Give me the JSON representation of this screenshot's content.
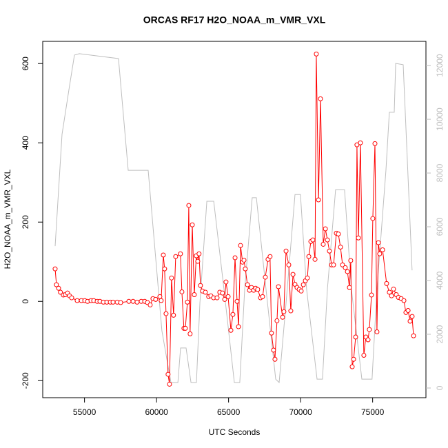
{
  "chart_data": {
    "type": "line",
    "title": "ORCAS RF17 H2O_NOAA_m_VMR_VXL",
    "x_label": "UTC Seconds",
    "y_label": "H2O_NOAA_m_VMR_VXL",
    "xlim": [
      52100,
      78700
    ],
    "xticks": [
      55000,
      60000,
      65000,
      70000,
      75000
    ],
    "ylim": [
      -243,
      656
    ],
    "yticks": [
      -200,
      0,
      200,
      400,
      600
    ],
    "y2lim": [
      -360,
      12900
    ],
    "y2ticks": [
      0,
      2000,
      4000,
      6000,
      8000,
      10000,
      12000
    ],
    "y2_color": "#bebebe",
    "series": [
      {
        "color": "#bebebe",
        "axis": "y2",
        "markers": false,
        "x": [
          52960,
          53440,
          53920,
          54300,
          54640,
          57360,
          58030,
          59420,
          60370,
          61000,
          61480,
          61670,
          62050,
          62390,
          62770,
          63010,
          63490,
          63970,
          64680,
          65400,
          65780,
          66120,
          66640,
          66930,
          67600,
          68270,
          68510,
          68990,
          69610,
          69990,
          70420,
          71140,
          71520,
          71860,
          72430,
          73050,
          73530,
          74250,
          74960,
          75300,
          75920,
          76160,
          76500,
          76600,
          77120,
          77740
        ],
        "values": [
          5280,
          9440,
          11100,
          12390,
          12440,
          12260,
          8100,
          8100,
          2130,
          205,
          205,
          1490,
          1490,
          205,
          205,
          3150,
          6950,
          6950,
          3670,
          205,
          205,
          3670,
          7080,
          7080,
          3670,
          330,
          205,
          3150,
          7200,
          7200,
          3670,
          330,
          330,
          3670,
          7380,
          7380,
          3670,
          330,
          330,
          3670,
          8080,
          10260,
          10260,
          12080,
          12030,
          4380
        ]
      },
      {
        "color": "#ff0000",
        "markers": true,
        "x": [
          52960,
          53050,
          53200,
          53330,
          53530,
          53670,
          53820,
          53960,
          54110,
          54490,
          54780,
          55020,
          55210,
          55450,
          55640,
          55880,
          56070,
          56310,
          56550,
          56790,
          56980,
          57270,
          57510,
          58080,
          58370,
          58650,
          58940,
          59180,
          59370,
          59560,
          59750,
          59940,
          60230,
          60320,
          60470,
          60560,
          60660,
          60800,
          60900,
          61040,
          61180,
          61330,
          61660,
          61760,
          61900,
          62000,
          62140,
          62240,
          62330,
          62480,
          62620,
          62760,
          62860,
          62950,
          63050,
          63190,
          63390,
          63620,
          63770,
          63960,
          64200,
          64390,
          64580,
          64730,
          64820,
          64970,
          65160,
          65300,
          65450,
          65590,
          65690,
          65830,
          65970,
          66070,
          66160,
          66310,
          66450,
          66590,
          66740,
          66880,
          67020,
          67220,
          67360,
          67550,
          67740,
          67880,
          67980,
          68120,
          68220,
          68360,
          68460,
          68750,
          68840,
          68990,
          69180,
          69320,
          69470,
          69610,
          69750,
          69900,
          70040,
          70190,
          70330,
          70470,
          70570,
          70710,
          70850,
          71000,
          71090,
          71240,
          71380,
          71570,
          71720,
          71860,
          72000,
          72150,
          72290,
          72480,
          72620,
          72770,
          72910,
          73100,
          73250,
          73390,
          73480,
          73580,
          73680,
          73820,
          73910,
          74010,
          74150,
          74390,
          74530,
          74680,
          74770,
          74920,
          75010,
          75160,
          75300,
          75400,
          75490,
          75690,
          75970,
          76160,
          76310,
          76450,
          76640,
          76790,
          76980,
          77170,
          77310,
          77460,
          77600,
          77740,
          77840
        ],
        "values": [
          82,
          42,
          33,
          23,
          16,
          17,
          21,
          14,
          9,
          2,
          2,
          2,
          0,
          2,
          2,
          0,
          0,
          -2,
          -2,
          -2,
          -2,
          -2,
          -3,
          0,
          0,
          -2,
          0,
          0,
          -3,
          -9,
          7,
          5,
          12,
          2,
          117,
          82,
          -31,
          -184,
          -209,
          59,
          -35,
          113,
          120,
          24,
          -68,
          -68,
          -2,
          242,
          -82,
          193,
          17,
          115,
          101,
          120,
          40,
          26,
          23,
          12,
          14,
          9,
          9,
          23,
          21,
          5,
          49,
          12,
          -73,
          -33,
          110,
          0,
          -64,
          141,
          99,
          104,
          82,
          42,
          28,
          35,
          28,
          33,
          30,
          9,
          12,
          61,
          106,
          113,
          -80,
          -123,
          -146,
          -49,
          37,
          -40,
          -26,
          127,
          92,
          -24,
          68,
          43,
          35,
          30,
          26,
          42,
          52,
          59,
          113,
          151,
          155,
          106,
          624,
          256,
          511,
          144,
          183,
          155,
          127,
          92,
          92,
          172,
          170,
          137,
          92,
          85,
          75,
          35,
          103,
          -165,
          -146,
          -90,
          395,
          160,
          400,
          -136,
          -90,
          -97,
          -71,
          16,
          209,
          398,
          -77,
          148,
          120,
          130,
          45,
          23,
          14,
          31,
          17,
          10,
          7,
          2,
          -28,
          -23,
          -50,
          -38,
          -87
        ]
      }
    ]
  }
}
